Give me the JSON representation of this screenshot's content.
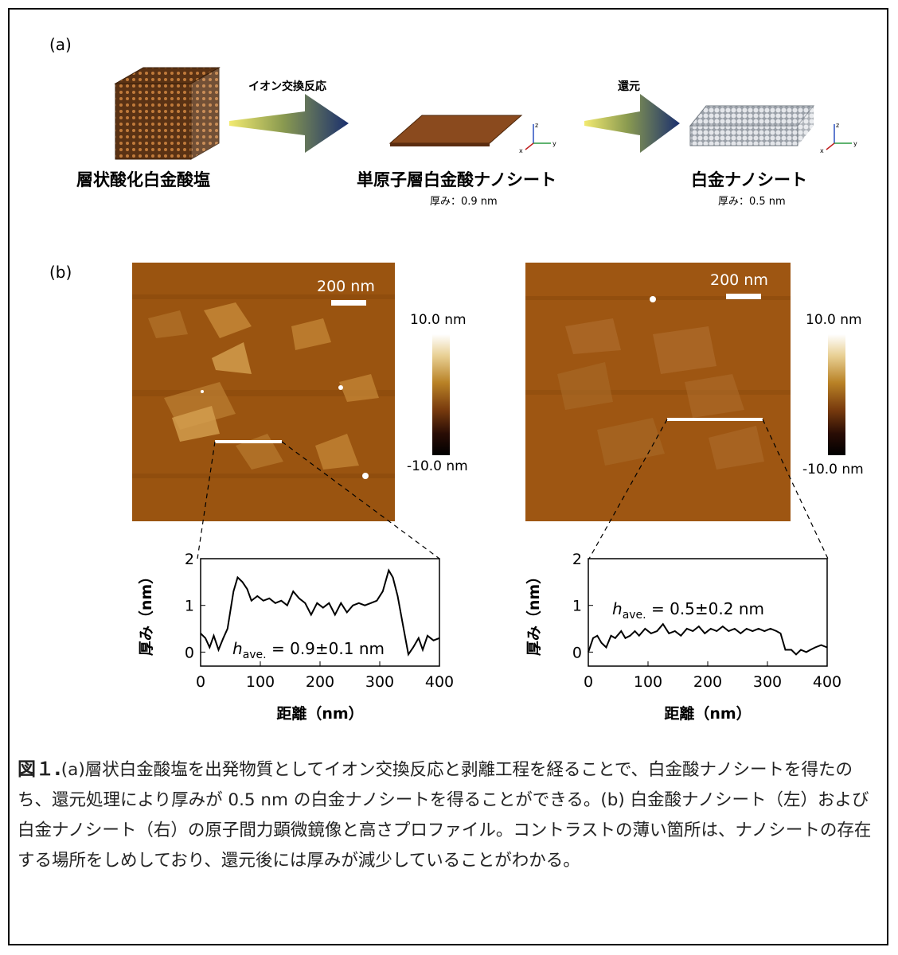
{
  "panel_a": {
    "label": "(a)",
    "arrow1_label": "イオン交換反応",
    "arrow2_label": "還元",
    "stage1_label": "層状酸化白金酸塩",
    "stage2_label": "単原子層白金酸ナノシート",
    "stage2_thickness": "厚み：0.9 nm",
    "stage3_label": "白金ナノシート",
    "stage3_thickness": "厚み：0.5 nm",
    "axis_labels": {
      "z": "z",
      "x": "x",
      "y": "y"
    },
    "colors": {
      "arrow": "#1a2f6e",
      "arrow_tail": "#e8e060",
      "crystal": "#7a4a22",
      "sheet_pt": "#b8b8b8"
    }
  },
  "panel_b": {
    "label": "(b)",
    "left_image": {
      "scalebar_label": "200 nm",
      "colorbar_max": "10.0 nm",
      "colorbar_min": "-10.0 nm"
    },
    "right_image": {
      "scalebar_label": "200 nm",
      "colorbar_max": "10.0 nm",
      "colorbar_min": "-10.0 nm"
    }
  },
  "chart_data": [
    {
      "type": "line",
      "xlabel": "距離（nm）",
      "ylabel": "厚み（nm）",
      "xlim": [
        0,
        400
      ],
      "ylim": [
        -0.3,
        2
      ],
      "xticks": [
        "0",
        "100",
        "200",
        "300",
        "400"
      ],
      "yticks": [
        "0",
        "1",
        "2"
      ],
      "annotation": {
        "prefix": "h",
        "subscript": "ave.",
        "value": " = 0.9±0.1 nm"
      },
      "x": [
        0,
        8,
        15,
        22,
        30,
        38,
        45,
        55,
        62,
        70,
        78,
        85,
        95,
        105,
        115,
        125,
        135,
        145,
        155,
        165,
        175,
        185,
        195,
        205,
        215,
        225,
        235,
        245,
        255,
        265,
        275,
        285,
        295,
        305,
        315,
        322,
        330,
        340,
        348,
        356,
        365,
        372,
        380,
        390,
        400
      ],
      "y": [
        0.4,
        0.3,
        0.1,
        0.35,
        0.05,
        0.3,
        0.5,
        1.3,
        1.6,
        1.5,
        1.35,
        1.1,
        1.2,
        1.1,
        1.15,
        1.05,
        1.1,
        1.0,
        1.3,
        1.15,
        1.05,
        0.8,
        1.05,
        0.95,
        1.05,
        0.8,
        1.05,
        0.85,
        1.0,
        1.05,
        1.0,
        1.05,
        1.1,
        1.3,
        1.75,
        1.6,
        1.2,
        0.5,
        -0.05,
        0.1,
        0.3,
        0.05,
        0.35,
        0.25,
        0.3
      ]
    },
    {
      "type": "line",
      "xlabel": "距離（nm）",
      "ylabel": "厚み（nm）",
      "xlim": [
        0,
        400
      ],
      "ylim": [
        -0.3,
        2
      ],
      "xticks": [
        "0",
        "100",
        "200",
        "300",
        "400"
      ],
      "yticks": [
        "0",
        "1",
        "2"
      ],
      "annotation": {
        "prefix": "h",
        "subscript": "ave.",
        "value": " = 0.5±0.2 nm"
      },
      "x": [
        0,
        8,
        15,
        22,
        30,
        38,
        45,
        55,
        62,
        70,
        78,
        85,
        95,
        105,
        115,
        125,
        135,
        145,
        155,
        165,
        175,
        185,
        195,
        205,
        215,
        225,
        235,
        245,
        255,
        265,
        275,
        285,
        295,
        305,
        315,
        322,
        330,
        340,
        348,
        356,
        365,
        372,
        380,
        390,
        400
      ],
      "y": [
        0.0,
        0.3,
        0.35,
        0.2,
        0.1,
        0.35,
        0.3,
        0.45,
        0.3,
        0.35,
        0.45,
        0.35,
        0.5,
        0.4,
        0.45,
        0.6,
        0.4,
        0.45,
        0.35,
        0.5,
        0.45,
        0.55,
        0.4,
        0.5,
        0.45,
        0.55,
        0.45,
        0.5,
        0.4,
        0.5,
        0.45,
        0.5,
        0.45,
        0.5,
        0.45,
        0.4,
        0.05,
        0.05,
        -0.05,
        0.05,
        0.0,
        0.05,
        0.1,
        0.15,
        0.1
      ]
    }
  ],
  "caption": {
    "fig_label": "図１.",
    "text": "(a)層状白金酸塩を出発物質としてイオン交換反応と剥離工程を経ることで、白金酸ナノシートを得たのち、還元処理により厚みが 0.5 nm の白金ナノシートを得ることができる。(b) 白金酸ナノシート（左）および白金ナノシート（右）の原子間力顕微鏡像と高さプロファイル。コントラストの薄い箇所は、ナノシートの存在する場所をしめしており、還元後には厚みが減少していることがわかる。"
  }
}
